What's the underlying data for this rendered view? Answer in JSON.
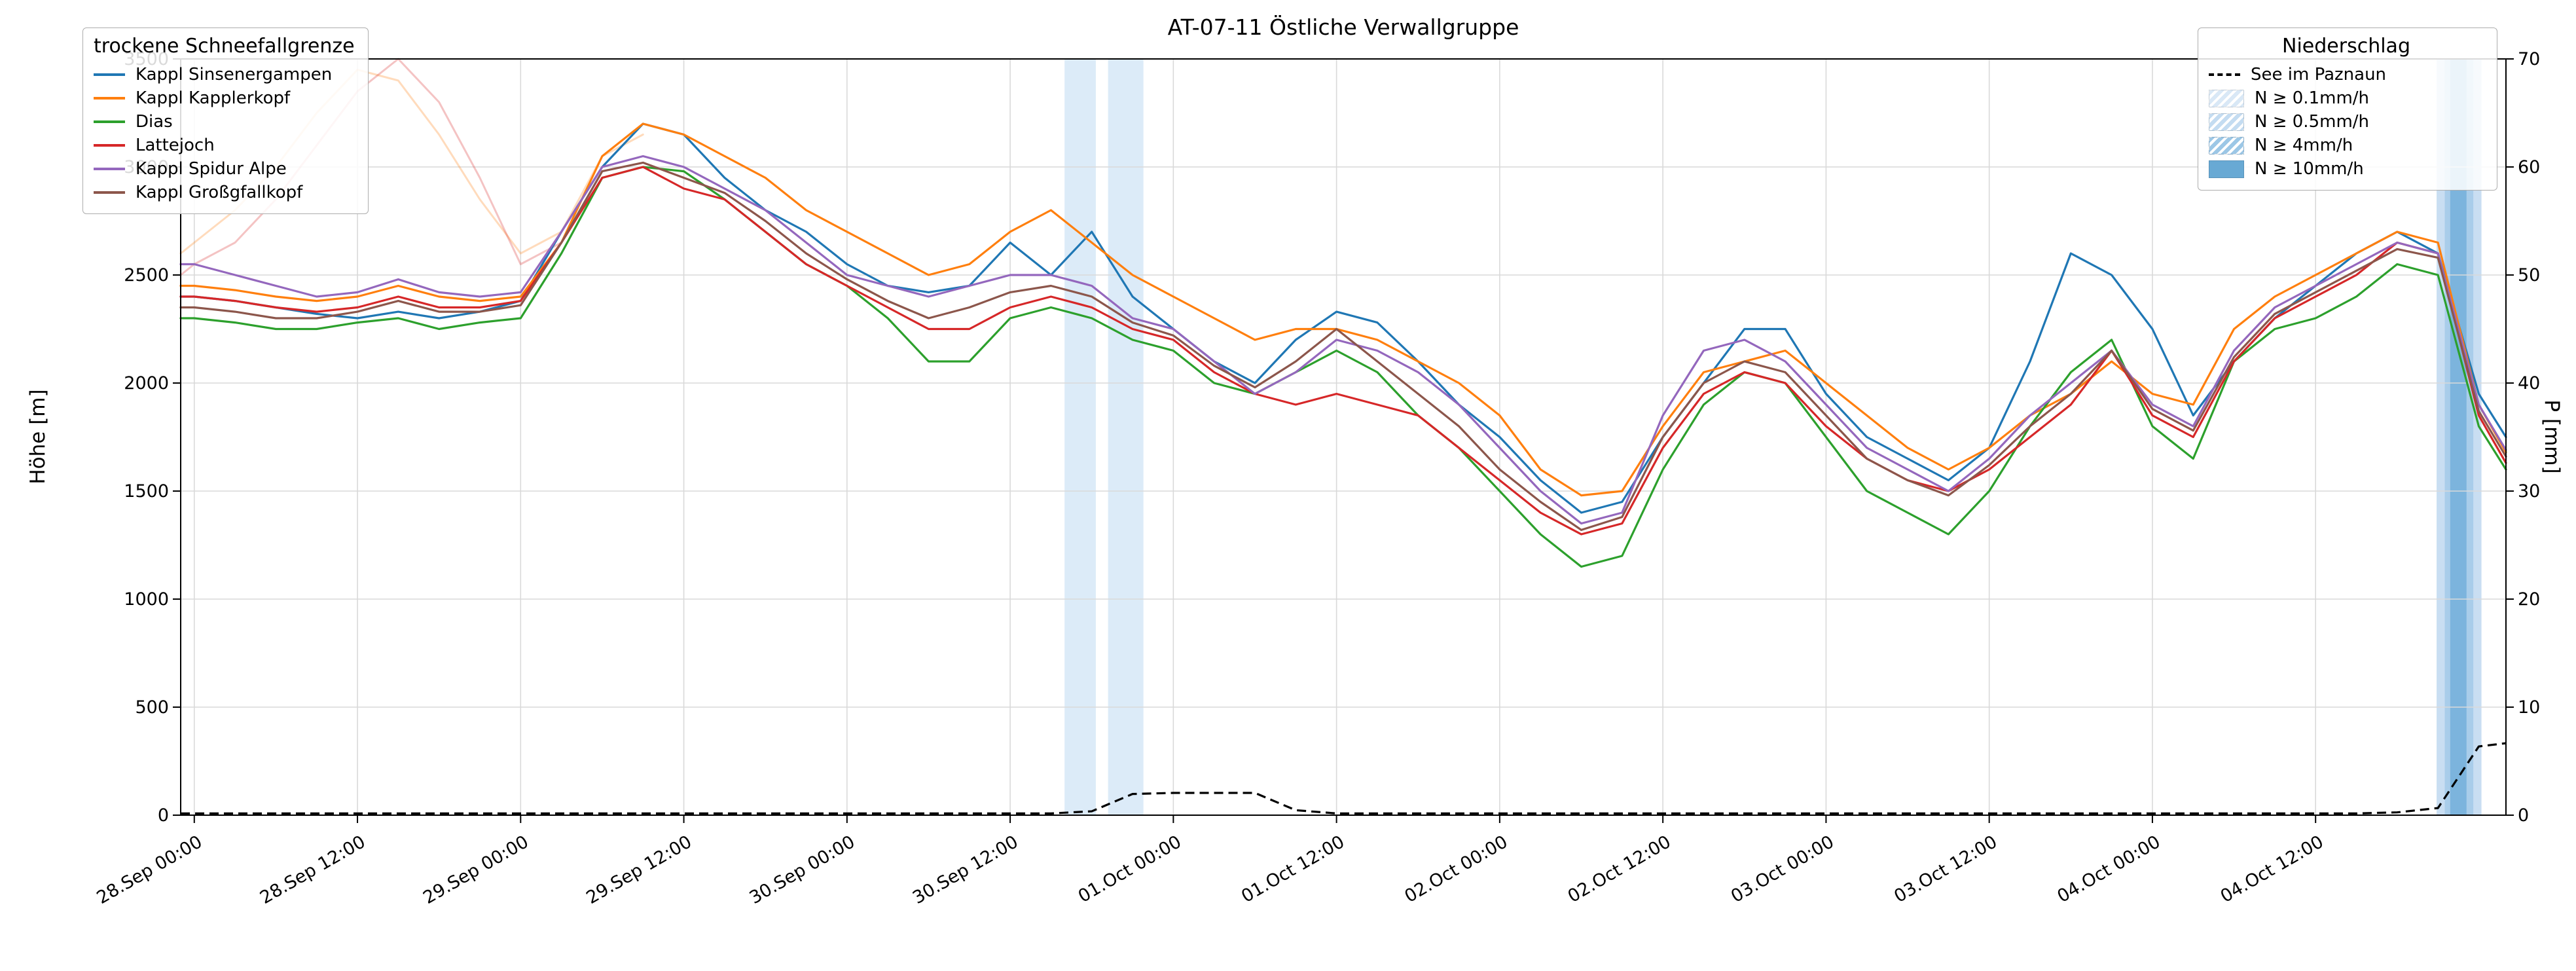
{
  "legends": {
    "snowline": {
      "title": "trockene Schneefallgrenze"
    },
    "precip": {
      "title": "Niederschlag",
      "entries": [
        {
          "label": "See im Paznaun",
          "type": "dash",
          "color": "#000000",
          "hatch": false
        },
        {
          "label": "N ≥ 0.1mm/h",
          "type": "patch",
          "color": "#d9e8f6",
          "hatch": true
        },
        {
          "label": "N ≥ 0.5mm/h",
          "type": "patch",
          "color": "#c4dcf1",
          "hatch": true
        },
        {
          "label": "N ≥ 4mm/h",
          "type": "patch",
          "color": "#9cc7e6",
          "hatch": true
        },
        {
          "label": "N ≥ 10mm/h",
          "type": "patch",
          "color": "#68a9d4",
          "hatch": false
        }
      ]
    }
  },
  "chart_data": {
    "type": "line",
    "title": "AT-07-11 Östliche Verwallgruppe",
    "ylabel_left": "Höhe [m]",
    "ylabel_right": "P [mm]",
    "y_left_max": 3500,
    "y_right_max": 70,
    "y_left_ticks": [
      0,
      500,
      1000,
      1500,
      2000,
      2500,
      3000,
      3500
    ],
    "y_right_ticks": [
      0,
      10,
      20,
      30,
      40,
      50,
      60,
      70
    ],
    "grid_color": "#d9d9d9",
    "x_domain": [
      -1,
      170
    ],
    "x_tick_hours": [
      0,
      12,
      24,
      36,
      48,
      60,
      72,
      84,
      96,
      108,
      120,
      132,
      144,
      156
    ],
    "x_tick_labels": [
      "28.Sep 00:00",
      "28.Sep 12:00",
      "29.Sep 00:00",
      "29.Sep 12:00",
      "30.Sep 00:00",
      "30.Sep 12:00",
      "01.Oct 00:00",
      "01.Oct 12:00",
      "02.Oct 00:00",
      "02.Oct 12:00",
      "03.Oct 00:00",
      "03.Oct 12:00",
      "04.Oct 00:00",
      "04.Oct 12:00"
    ],
    "x_hours": [
      -1,
      0,
      3,
      6,
      9,
      12,
      15,
      18,
      21,
      24,
      27,
      30,
      33,
      36,
      39,
      42,
      45,
      48,
      51,
      54,
      57,
      60,
      63,
      66,
      69,
      72,
      75,
      78,
      81,
      84,
      87,
      90,
      93,
      96,
      99,
      102,
      105,
      108,
      111,
      114,
      117,
      120,
      123,
      126,
      129,
      132,
      135,
      138,
      141,
      144,
      147,
      150,
      153,
      156,
      159,
      162,
      165,
      168,
      170
    ],
    "series": [
      {
        "name": "Kappl Sinsenergampen",
        "color": "#1f77b4",
        "values": [
          2400,
          2400,
          2380,
          2350,
          2320,
          2300,
          2330,
          2300,
          2330,
          2380,
          2700,
          3000,
          3200,
          3150,
          2950,
          2800,
          2700,
          2550,
          2450,
          2420,
          2450,
          2650,
          2500,
          2700,
          2400,
          2250,
          2100,
          2000,
          2200,
          2330,
          2280,
          2100,
          1900,
          1750,
          1550,
          1400,
          1450,
          1750,
          2000,
          2250,
          2250,
          1950,
          1750,
          1650,
          1550,
          1700,
          2100,
          2600,
          2500,
          2250,
          1850,
          2100,
          2300,
          2450,
          2600,
          2700,
          2600,
          1950,
          1750
        ]
      },
      {
        "name": "Kappl Kapplerkopf",
        "color": "#ff7f0e",
        "values": [
          2450,
          2450,
          2430,
          2400,
          2380,
          2400,
          2450,
          2400,
          2380,
          2400,
          2650,
          3050,
          3200,
          3150,
          3050,
          2950,
          2800,
          2700,
          2600,
          2500,
          2550,
          2700,
          2800,
          2650,
          2500,
          2400,
          2300,
          2200,
          2250,
          2250,
          2200,
          2100,
          2000,
          1850,
          1600,
          1480,
          1500,
          1800,
          2050,
          2100,
          2150,
          2000,
          1850,
          1700,
          1600,
          1700,
          1850,
          1950,
          2100,
          1950,
          1900,
          2250,
          2400,
          2500,
          2600,
          2700,
          2650,
          1900,
          1680
        ]
      },
      {
        "name": "Dias",
        "color": "#2ca02c",
        "values": [
          2300,
          2300,
          2280,
          2250,
          2250,
          2280,
          2300,
          2250,
          2280,
          2300,
          2600,
          2950,
          3000,
          2980,
          2850,
          2700,
          2550,
          2450,
          2300,
          2100,
          2100,
          2300,
          2350,
          2300,
          2200,
          2150,
          2000,
          1950,
          2050,
          2150,
          2050,
          1850,
          1700,
          1500,
          1300,
          1150,
          1200,
          1600,
          1900,
          2050,
          2000,
          1750,
          1500,
          1400,
          1300,
          1500,
          1800,
          2050,
          2200,
          1800,
          1650,
          2100,
          2250,
          2300,
          2400,
          2550,
          2500,
          1800,
          1600
        ]
      },
      {
        "name": "Lattejoch",
        "color": "#d62728",
        "values": [
          2400,
          2400,
          2380,
          2350,
          2330,
          2350,
          2400,
          2350,
          2350,
          2380,
          2650,
          2950,
          3000,
          2900,
          2850,
          2700,
          2550,
          2450,
          2350,
          2250,
          2250,
          2350,
          2400,
          2350,
          2250,
          2200,
          2050,
          1950,
          1900,
          1950,
          1900,
          1850,
          1700,
          1550,
          1400,
          1300,
          1350,
          1700,
          1950,
          2050,
          2000,
          1800,
          1650,
          1550,
          1500,
          1600,
          1750,
          1900,
          2150,
          1850,
          1750,
          2100,
          2300,
          2400,
          2500,
          2650,
          2600,
          1850,
          1630
        ]
      },
      {
        "name": "Kappl Spidur Alpe",
        "color": "#9467bd",
        "values": [
          2550,
          2550,
          2500,
          2450,
          2400,
          2420,
          2480,
          2420,
          2400,
          2420,
          2700,
          3000,
          3050,
          3000,
          2900,
          2800,
          2650,
          2500,
          2450,
          2400,
          2450,
          2500,
          2500,
          2450,
          2300,
          2250,
          2100,
          1950,
          2050,
          2200,
          2150,
          2050,
          1900,
          1700,
          1500,
          1350,
          1400,
          1850,
          2150,
          2200,
          2100,
          1900,
          1700,
          1600,
          1500,
          1650,
          1850,
          2000,
          2150,
          1900,
          1800,
          2150,
          2350,
          2450,
          2550,
          2650,
          2600,
          1900,
          1690
        ]
      },
      {
        "name": "Kappl Großgfallkopf",
        "color": "#8c564b",
        "values": [
          2350,
          2350,
          2330,
          2300,
          2300,
          2330,
          2380,
          2330,
          2330,
          2360,
          2650,
          2980,
          3020,
          2950,
          2880,
          2750,
          2600,
          2480,
          2380,
          2300,
          2350,
          2420,
          2450,
          2400,
          2280,
          2220,
          2080,
          1980,
          2100,
          2250,
          2100,
          1950,
          1800,
          1600,
          1450,
          1320,
          1380,
          1750,
          2000,
          2100,
          2050,
          1850,
          1650,
          1550,
          1480,
          1620,
          1800,
          1950,
          2150,
          1880,
          1780,
          2120,
          2320,
          2420,
          2520,
          2620,
          2580,
          1870,
          1660
        ]
      }
    ],
    "ghost_series": [
      {
        "name": "pale-trace-1",
        "color": "#ff7f0e",
        "opacity": 0.28,
        "x": [
          -1,
          0,
          3,
          6,
          9,
          12,
          15,
          18,
          21,
          24,
          27,
          30,
          33
        ],
        "values": [
          2600,
          2650,
          2800,
          3000,
          3250,
          3450,
          3400,
          3150,
          2850,
          2600,
          2700,
          3050,
          3150
        ]
      },
      {
        "name": "pale-trace-2",
        "color": "#d62728",
        "opacity": 0.28,
        "x": [
          -1,
          0,
          3,
          6,
          9,
          12,
          15,
          18,
          21,
          24,
          27,
          30,
          33
        ],
        "values": [
          2500,
          2550,
          2650,
          2850,
          3100,
          3350,
          3500,
          3300,
          2950,
          2550,
          2650,
          2950,
          3000
        ]
      }
    ],
    "precip_line": {
      "name": "See im Paznaun",
      "color": "#000000",
      "dashed": true,
      "values": [
        0.1,
        0.1,
        0.1,
        0.1,
        0.1,
        0.1,
        0.1,
        0.1,
        0.1,
        0.1,
        0.1,
        0.1,
        0.1,
        0.1,
        0.1,
        0.1,
        0.1,
        0.1,
        0.1,
        0.1,
        0.1,
        0.1,
        0.1,
        0.3,
        1.9,
        2.0,
        2.0,
        2.0,
        0.4,
        0.1,
        0.1,
        0.1,
        0.1,
        0.1,
        0.1,
        0.1,
        0.1,
        0.1,
        0.1,
        0.1,
        0.1,
        0.1,
        0.1,
        0.1,
        0.1,
        0.1,
        0.1,
        0.1,
        0.1,
        0.1,
        0.1,
        0.1,
        0.1,
        0.1,
        0.1,
        0.2,
        0.6,
        6.3,
        6.6
      ]
    },
    "precip_bands": [
      {
        "from": 64.0,
        "to": 66.3,
        "color": "#dcebf8",
        "level": "0.1"
      },
      {
        "from": 67.2,
        "to": 69.8,
        "color": "#dcebf8",
        "level": "0.1"
      },
      {
        "from": 164.9,
        "to": 168.2,
        "color": "#c9def2",
        "level": "0.5"
      },
      {
        "from": 165.5,
        "to": 167.6,
        "color": "#a9cdea",
        "level": "4"
      },
      {
        "from": 165.9,
        "to": 167.1,
        "color": "#7cb4dd",
        "level": "10"
      }
    ]
  }
}
